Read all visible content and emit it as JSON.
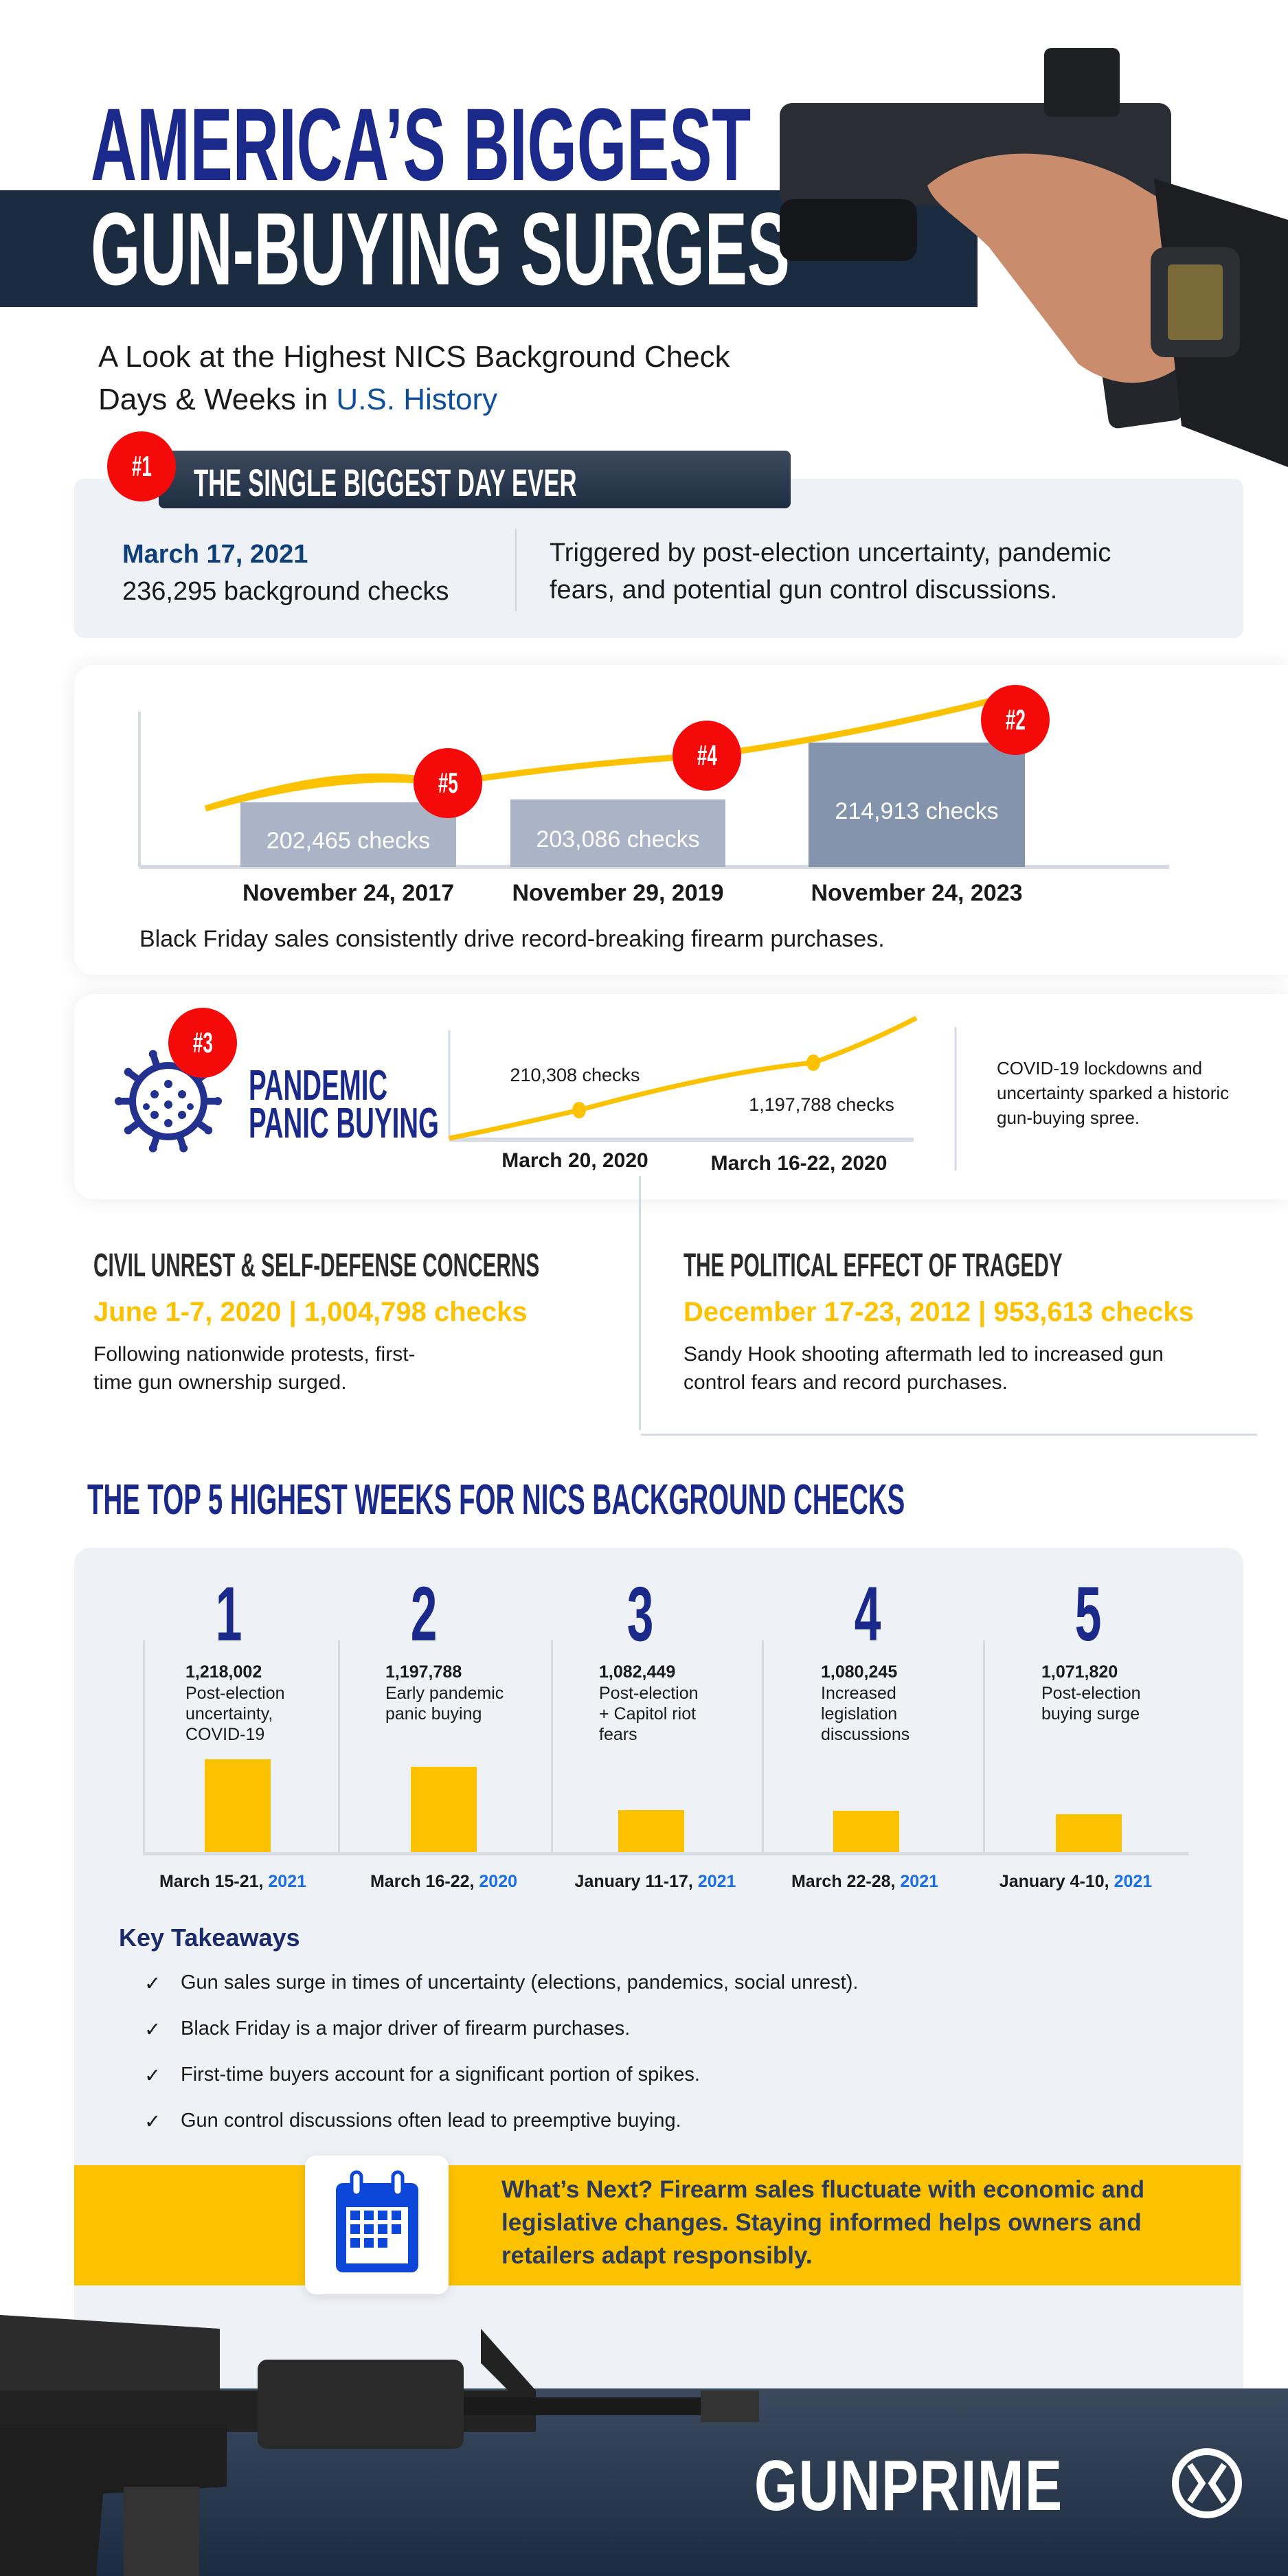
{
  "header": {
    "title_line1": "AMERICA’S BIGGEST",
    "title_line2": "GUN-BUYING SURGES",
    "subtitle_line1": "A Look at the Highest NICS Background Check",
    "subtitle_line2_prefix": "Days & Weeks in ",
    "subtitle_line2_highlight": "U.S. History"
  },
  "single_day": {
    "badge": "#1",
    "heading": "THE SINGLE BIGGEST DAY EVER",
    "date": "March 17, 2021",
    "checks": "236,295 background checks",
    "description_line1": "Triggered by post-election uncertainty, pandemic",
    "description_line2": "fears, and potential gun control discussions."
  },
  "black_friday": {
    "caption": "Black Friday sales consistently drive record-breaking firearm purchases.",
    "bars": [
      {
        "badge": "#5",
        "label": "202,465  checks",
        "date": "November 24, 2017",
        "value": 202465
      },
      {
        "badge": "#4",
        "label": "203,086 checks",
        "date": "November 29, 2019",
        "value": 203086
      },
      {
        "badge": "#2",
        "label": "214,913 checks",
        "date": "November 24, 2023",
        "value": 214913
      }
    ]
  },
  "pandemic": {
    "badge": "#3",
    "title_line1": "PANDEMIC",
    "title_line2": "PANIC BUYING",
    "points": [
      {
        "label": "210,308 checks",
        "date": "March 20, 2020"
      },
      {
        "label": "1,197,788 checks",
        "date": "March 16-22, 2020"
      }
    ],
    "description_line1": "COVID-19 lockdowns and",
    "description_line2": "uncertainty sparked a historic",
    "description_line3": "gun-buying spree."
  },
  "civil_unrest": {
    "title": "CIVIL UNREST & SELF-DEFENSE CONCERNS",
    "stat": "June 1-7, 2020 | 1,004,798 checks",
    "desc_line1": "Following nationwide protests, first-",
    "desc_line2": "time gun ownership surged."
  },
  "tragedy": {
    "title": "THE POLITICAL EFFECT OF TRAGEDY",
    "stat": "December 17-23, 2012 | 953,613 checks",
    "desc_line1": "Sandy Hook shooting aftermath led to increased gun",
    "desc_line2": "control fears and record purchases."
  },
  "top5": {
    "title": "THE TOP 5 HIGHEST WEEKS FOR NICS BACKGROUND CHECKS",
    "weeks": [
      {
        "rank": "1",
        "value": "1,218,002",
        "desc": [
          "Post-election",
          "uncertainty,",
          "COVID-19"
        ],
        "date": "March 15-21, ",
        "year": "2021",
        "num": 1218002
      },
      {
        "rank": "2",
        "value": "1,197,788",
        "desc": [
          "Early pandemic",
          "panic buying",
          ""
        ],
        "date": "March 16-22, ",
        "year": "2020",
        "num": 1197788
      },
      {
        "rank": "3",
        "value": "1,082,449",
        "desc": [
          "Post-election",
          "+ Capitol riot",
          "fears"
        ],
        "date": "January 11-17, ",
        "year": "2021",
        "num": 1082449
      },
      {
        "rank": "4",
        "value": "1,080,245",
        "desc": [
          "Increased",
          "legislation",
          "discussions"
        ],
        "date": "March 22-28, ",
        "year": "2021",
        "num": 1080245
      },
      {
        "rank": "5",
        "value": "1,071,820",
        "desc": [
          "Post-election",
          "buying surge",
          ""
        ],
        "date": "January 4-10, ",
        "year": "2021",
        "num": 1071820
      }
    ]
  },
  "takeaways": {
    "title": "Key Takeaways",
    "check_icon": "✓",
    "items": [
      "Gun sales surge in times of uncertainty (elections, pandemics, social unrest).",
      "Black Friday is a major driver of firearm purchases.",
      "First-time buyers account for a significant portion of spikes.",
      "Gun control discussions often lead to preemptive buying."
    ]
  },
  "whats_next": {
    "icon": "calendar-icon",
    "line1": "What’s Next? Firearm sales fluctuate with economic and",
    "line2": "legislative changes. Staying informed helps owners and",
    "line3": "retailers adapt responsibly."
  },
  "footer": {
    "logo": "GUNPRIME"
  },
  "colors": {
    "navy": "#1b2a8a",
    "dark": "#1b2b40",
    "yellow": "#fcc200",
    "red": "#f50a0a",
    "blue": "#1a6fe8",
    "panel": "#eef1f6"
  }
}
